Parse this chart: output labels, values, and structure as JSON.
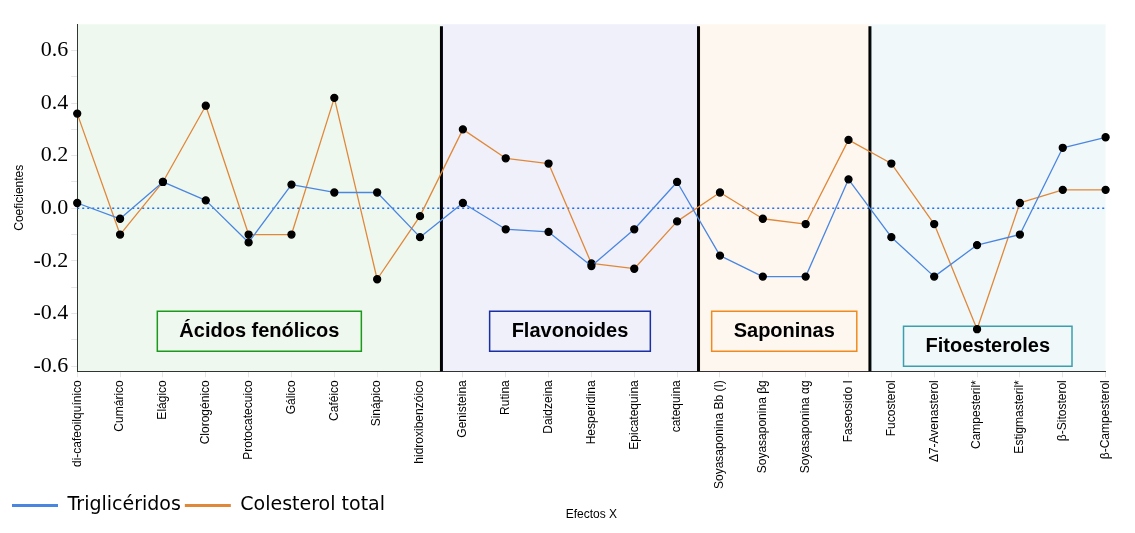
{
  "chart_data": {
    "type": "line",
    "xlabel": "Efectos X",
    "ylabel": "Coeficientes",
    "categories": [
      "di-cafeoilquínico",
      "Cumárico",
      "Elágico",
      "Clorogénico",
      "Protocatecuico",
      "Gálico",
      "Caféico",
      "Sinápico",
      "hidroxibenzóico",
      "Genisteina",
      "Rutina",
      "Daidzeina",
      "Hesperidina",
      "Epicatequina",
      "catequina",
      "Soyasaponina Bb (I)",
      "Soyasaponina βg",
      "Soyasaponina αg",
      "Faseosido I",
      "Fucosterol",
      "Δ7-Avenasterol",
      "Campesteril*",
      "Estigmasteril*",
      "β-Sitosterol",
      "β-Campesterol"
    ],
    "series": [
      {
        "name": "Triglicéridos",
        "color": "#4a86e0",
        "values": [
          0.02,
          -0.04,
          0.1,
          0.03,
          -0.13,
          0.09,
          0.06,
          0.06,
          -0.11,
          0.02,
          -0.08,
          -0.09,
          -0.22,
          -0.08,
          0.1,
          -0.18,
          -0.26,
          -0.26,
          0.11,
          -0.11,
          -0.26,
          -0.14,
          -0.1,
          0.23,
          0.27
        ]
      },
      {
        "name": "Colesterol total",
        "color": "#e0883a",
        "values": [
          0.36,
          -0.1,
          0.1,
          0.39,
          -0.1,
          -0.1,
          0.42,
          -0.27,
          -0.03,
          0.3,
          0.19,
          0.17,
          -0.21,
          -0.23,
          -0.05,
          0.06,
          -0.04,
          -0.06,
          0.26,
          0.17,
          -0.06,
          -0.46,
          0.02,
          0.07,
          0.07
        ]
      }
    ],
    "ylim": [
      -0.62,
      0.7
    ],
    "yticks": [
      {
        "value": -0.6,
        "label": "-0.6"
      },
      {
        "value": -0.5,
        "label": null
      },
      {
        "value": -0.4,
        "label": "-0.4"
      },
      {
        "value": -0.3,
        "label": null
      },
      {
        "value": -0.2,
        "label": "-0.2"
      },
      {
        "value": -0.1,
        "label": null
      },
      {
        "value": 0,
        "label": "0.0"
      },
      {
        "value": 0.1,
        "label": null
      },
      {
        "value": 0.2,
        "label": "0.2"
      },
      {
        "value": 0.3,
        "label": null
      },
      {
        "value": 0.4,
        "label": "0.4"
      },
      {
        "value": 0.5,
        "label": null
      },
      {
        "value": 0.6,
        "label": "0.6"
      }
    ],
    "ref_lines": [
      {
        "axis": "y",
        "value": 0,
        "color": "#1a6cff",
        "line_style": "dotted"
      }
    ],
    "bands": [
      {
        "axis": "x",
        "from": "di-cafeoilquínico",
        "to": "hidroxibenzóico",
        "label": "Ácidos fenólicos",
        "color": "#1a9a1a"
      },
      {
        "axis": "x",
        "from": "Genisteina",
        "to": "catequina",
        "label": "Flavonoides",
        "color": "#1a2ea8"
      },
      {
        "axis": "x",
        "from": "Soyasaponina Bb (I)",
        "to": "Faseosido I",
        "label": "Saponinas",
        "color": "#f08a1c"
      },
      {
        "axis": "x",
        "from": "Fucosterol",
        "to": "β-Campesterol",
        "label": "Fitoesteroles",
        "color": "#3aa0b0"
      }
    ],
    "marker": "circle",
    "grid": false,
    "legend": "bottom left"
  }
}
